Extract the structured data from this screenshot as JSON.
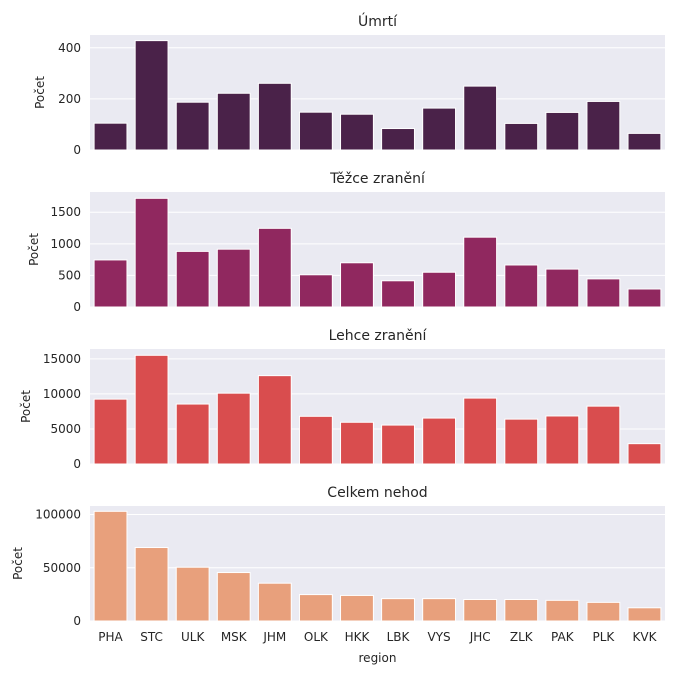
{
  "chart_data": {
    "type": "bar",
    "xlabel": "region",
    "categories": [
      "PHA",
      "STC",
      "ULK",
      "MSK",
      "JHM",
      "OLK",
      "HKK",
      "LBK",
      "VYS",
      "JHC",
      "ZLK",
      "PAK",
      "PLK",
      "KVK"
    ],
    "panels": [
      {
        "title": "Úmrtí",
        "ylabel": "Počet",
        "color": "#4a2249",
        "ylim": [
          0,
          450
        ],
        "yticks": [
          0,
          200,
          400
        ],
        "values": [
          105,
          428,
          187,
          222,
          261,
          148,
          140,
          84,
          164,
          250,
          104,
          147,
          190,
          65
        ]
      },
      {
        "title": "Těžce zranění",
        "ylabel": "Počet",
        "color": "#90285f",
        "ylim": [
          0,
          1820
        ],
        "yticks": [
          0,
          500,
          1000,
          1500
        ],
        "values": [
          745,
          1720,
          880,
          915,
          1245,
          510,
          700,
          415,
          550,
          1105,
          665,
          600,
          445,
          285
        ]
      },
      {
        "title": "Lehce zranění",
        "ylabel": "Počet",
        "color": "#d94d4e",
        "ylim": [
          0,
          16400
        ],
        "yticks": [
          0,
          5000,
          10000,
          15000
        ],
        "values": [
          9250,
          15500,
          8550,
          10100,
          12600,
          6800,
          5950,
          5550,
          6550,
          9400,
          6400,
          6850,
          8250,
          2900
        ]
      },
      {
        "title": "Celkem nehod",
        "ylabel": "Počet",
        "color": "#e8a07c",
        "ylim": [
          0,
          108000
        ],
        "yticks": [
          0,
          50000,
          100000
        ],
        "values": [
          103000,
          69000,
          50500,
          45500,
          35500,
          24800,
          24000,
          21000,
          21000,
          20200,
          20200,
          19400,
          17500,
          12400
        ]
      }
    ]
  }
}
